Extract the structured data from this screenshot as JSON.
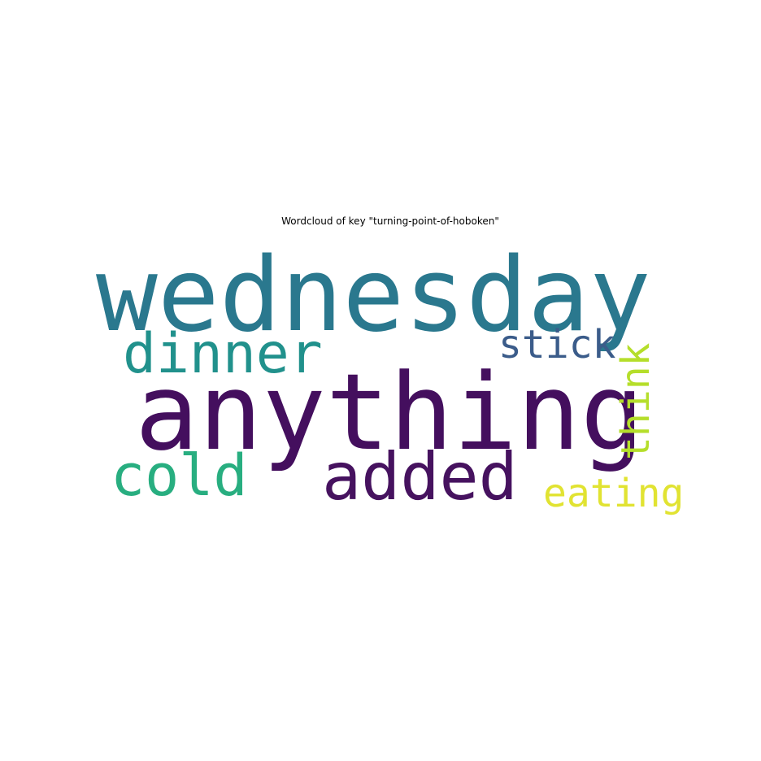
{
  "title": "Wordcloud of key \"turning-point-of-hoboken\"",
  "words": [
    {
      "text": "wednesday",
      "color": "#2a788e",
      "orientation": "horizontal"
    },
    {
      "text": "anything",
      "color": "#440f5e",
      "orientation": "horizontal"
    },
    {
      "text": "dinner",
      "color": "#21918c",
      "orientation": "horizontal"
    },
    {
      "text": "stick",
      "color": "#3b5c8a",
      "orientation": "horizontal"
    },
    {
      "text": "cold",
      "color": "#28ae80",
      "orientation": "horizontal"
    },
    {
      "text": "added",
      "color": "#46125f",
      "orientation": "horizontal"
    },
    {
      "text": "eating",
      "color": "#e1e332",
      "orientation": "horizontal"
    },
    {
      "text": "think",
      "color": "#b5de2b",
      "orientation": "vertical"
    }
  ]
}
